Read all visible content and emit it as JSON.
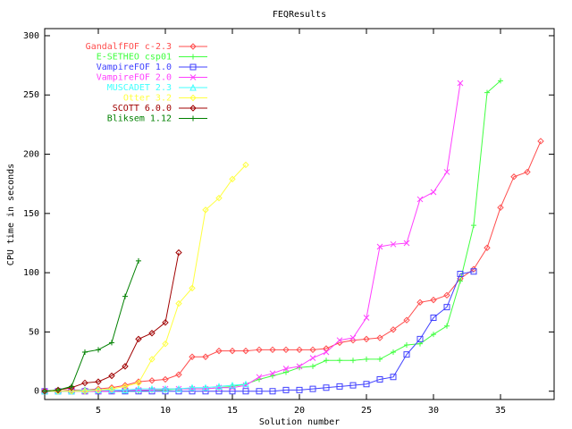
{
  "chart_data": {
    "type": "line",
    "title": "FEQResults",
    "xlabel": "Solution number",
    "ylabel": "CPU time in seconds",
    "xlim": [
      1,
      39
    ],
    "ylim": [
      -7,
      306
    ],
    "xticks": [
      5,
      10,
      15,
      20,
      25,
      30,
      35
    ],
    "yticks": [
      0,
      50,
      100,
      150,
      200,
      250,
      300
    ],
    "legend": "upper left",
    "series": [
      {
        "name": "GandalfFOF c-2.3",
        "color": "#ff4d4d",
        "x": [
          1,
          2,
          3,
          4,
          5,
          6,
          7,
          8,
          9,
          10,
          11,
          12,
          13,
          14,
          15,
          16,
          17,
          18,
          19,
          20,
          21,
          22,
          23,
          24,
          25,
          26,
          27,
          28,
          29,
          30,
          31,
          32,
          33,
          34,
          35,
          36,
          37,
          38
        ],
        "values": [
          0,
          0,
          1,
          1,
          2,
          3,
          5,
          8,
          9,
          10,
          14,
          29,
          29,
          34,
          34,
          34,
          35,
          35,
          35,
          35,
          35,
          36,
          41,
          43,
          44,
          45,
          52,
          60,
          75,
          77,
          81,
          95,
          103,
          121,
          155,
          181,
          185,
          211
        ]
      },
      {
        "name": "E-SETHEO csp01",
        "color": "#40ff40",
        "x": [
          1,
          2,
          3,
          4,
          5,
          6,
          7,
          8,
          9,
          10,
          11,
          12,
          13,
          14,
          15,
          16,
          17,
          18,
          19,
          20,
          21,
          22,
          23,
          24,
          25,
          26,
          27,
          28,
          29,
          30,
          31,
          32,
          33,
          34,
          35
        ],
        "values": [
          0,
          0,
          0,
          0,
          0,
          0,
          0,
          0,
          1,
          1,
          2,
          2,
          2,
          3,
          4,
          6,
          10,
          13,
          16,
          20,
          21,
          26,
          26,
          26,
          27,
          27,
          33,
          39,
          40,
          48,
          55,
          93,
          140,
          252,
          262
        ]
      },
      {
        "name": "VampireFOF 1.0",
        "color": "#4040ff",
        "x": [
          1,
          2,
          3,
          4,
          5,
          6,
          7,
          8,
          9,
          10,
          11,
          12,
          13,
          14,
          15,
          16,
          17,
          18,
          19,
          20,
          21,
          22,
          23,
          24,
          25,
          26,
          27,
          28,
          29,
          30,
          31,
          32,
          33
        ],
        "values": [
          0,
          0,
          0,
          0,
          0,
          0,
          0,
          0,
          0,
          0,
          0,
          0,
          0,
          0,
          0,
          0,
          0,
          0,
          1,
          1,
          2,
          3,
          4,
          5,
          6,
          10,
          12,
          31,
          44,
          62,
          71,
          99,
          101
        ]
      },
      {
        "name": "VampireFOF 2.0",
        "color": "#ff40ff",
        "x": [
          1,
          2,
          3,
          4,
          5,
          6,
          7,
          8,
          9,
          10,
          11,
          12,
          13,
          14,
          15,
          16,
          17,
          18,
          19,
          20,
          21,
          22,
          23,
          24,
          25,
          26,
          27,
          28,
          29,
          30,
          31,
          32
        ],
        "values": [
          0,
          0,
          0,
          0,
          0,
          0,
          1,
          1,
          1,
          2,
          2,
          2,
          2,
          3,
          3,
          5,
          12,
          15,
          19,
          21,
          28,
          33,
          43,
          45,
          62,
          122,
          124,
          125,
          162,
          168,
          185,
          260
        ]
      },
      {
        "name": "MUSCADET 2.3",
        "color": "#40ffff",
        "x": [
          1,
          2,
          3,
          4,
          5,
          6,
          7,
          8,
          9,
          10,
          11,
          12,
          13,
          14,
          15,
          16
        ],
        "values": [
          0,
          0,
          0,
          1,
          1,
          1,
          1,
          2,
          2,
          2,
          2,
          3,
          3,
          4,
          5,
          6
        ]
      },
      {
        "name": "Otter 3.2",
        "color": "#ffff40",
        "x": [
          1,
          2,
          3,
          4,
          5,
          6,
          7,
          8,
          9,
          10,
          11,
          12,
          13,
          14,
          15,
          16
        ],
        "values": [
          0,
          0,
          0,
          0,
          1,
          2,
          4,
          7,
          27,
          40,
          74,
          87,
          153,
          163,
          179,
          191
        ]
      },
      {
        "name": "SCOTT 6.0.0",
        "color": "#a00000",
        "x": [
          1,
          2,
          3,
          4,
          5,
          6,
          7,
          8,
          9,
          10,
          11
        ],
        "values": [
          0,
          1,
          3,
          7,
          8,
          13,
          21,
          44,
          49,
          58,
          117
        ]
      },
      {
        "name": "Bliksem 1.12",
        "color": "#008000",
        "x": [
          1,
          2,
          3,
          4,
          5,
          6,
          7,
          8
        ],
        "values": [
          0,
          1,
          4,
          33,
          35,
          41,
          80,
          110
        ]
      }
    ]
  }
}
